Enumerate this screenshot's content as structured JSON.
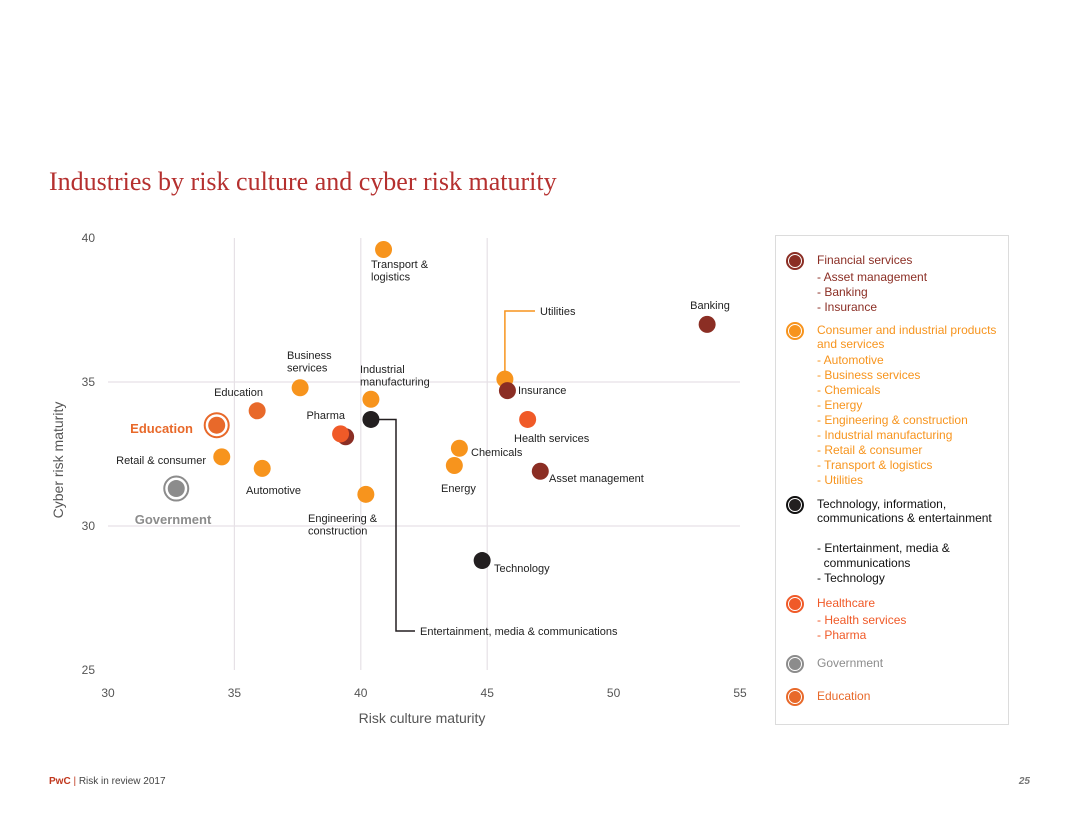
{
  "chart_data": {
    "type": "scatter",
    "title": "Industries by risk culture and cyber risk maturity",
    "xlabel": "Risk culture maturity",
    "ylabel": "Cyber risk maturity",
    "xlim": [
      30,
      55
    ],
    "ylim": [
      25,
      40
    ],
    "x_ticks": [
      "30",
      "35",
      "40",
      "45",
      "50",
      "55"
    ],
    "y_ticks": [
      "40",
      "35",
      "30",
      "25"
    ],
    "grid": true,
    "points": [
      {
        "label": "Transport & logistics",
        "x": 40.9,
        "y": 39.6,
        "group": "consumer"
      },
      {
        "label": "Banking",
        "x": 53.7,
        "y": 37.0,
        "group": "financial"
      },
      {
        "label": "Utilities",
        "x": 45.7,
        "y": 35.1,
        "group": "consumer"
      },
      {
        "label": "Insurance",
        "x": 45.8,
        "y": 34.7,
        "group": "financial"
      },
      {
        "label": "Business services",
        "x": 37.6,
        "y": 34.8,
        "group": "consumer"
      },
      {
        "label": "Industrial manufacturing",
        "x": 40.4,
        "y": 34.4,
        "group": "consumer"
      },
      {
        "label": "Education",
        "x": 35.9,
        "y": 34.0,
        "group": "education"
      },
      {
        "label": "Pharma",
        "x": 39.2,
        "y": 33.2,
        "group": "healthcare"
      },
      {
        "label": "Health services",
        "x": 46.6,
        "y": 33.7,
        "group": "healthcare"
      },
      {
        "label": "Chemicals",
        "x": 43.9,
        "y": 32.7,
        "group": "consumer"
      },
      {
        "label": "Retail & consumer",
        "x": 34.5,
        "y": 32.4,
        "group": "consumer"
      },
      {
        "label": "Automotive",
        "x": 36.1,
        "y": 32.0,
        "group": "consumer"
      },
      {
        "label": "Energy",
        "x": 43.7,
        "y": 32.1,
        "group": "consumer"
      },
      {
        "label": "Asset management",
        "x": 47.1,
        "y": 31.9,
        "group": "financial"
      },
      {
        "label": "Engineering & construction",
        "x": 40.2,
        "y": 31.1,
        "group": "consumer"
      },
      {
        "label": "Entertainment, media & communications",
        "x": 40.4,
        "y": 33.7,
        "group": "technology"
      },
      {
        "label": "Technology",
        "x": 44.8,
        "y": 28.8,
        "group": "technology"
      },
      {
        "label": "Education",
        "x": 34.3,
        "y": 33.5,
        "group": "education-avg",
        "highlight": true
      },
      {
        "label": "Government",
        "x": 32.7,
        "y": 31.3,
        "group": "government",
        "highlight": true
      }
    ],
    "extra_points": [
      {
        "x": 39.4,
        "y": 33.1,
        "group": "financial"
      }
    ],
    "legend": {
      "position": "right",
      "groups": [
        {
          "key": "financial",
          "title": "Financial services",
          "items": [
            "- Asset management",
            "- Banking",
            "- Insurance"
          ]
        },
        {
          "key": "consumer",
          "title": "Consumer and industrial products and services",
          "items": [
            "- Automotive",
            "- Business services",
            "- Chemicals",
            "- Energy",
            "- Engineering & construction",
            "- Industrial manufacturing",
            "- Retail & consumer",
            "- Transport & logistics",
            "- Utilities"
          ]
        },
        {
          "key": "technology",
          "title": "Technology, information, communications & entertainment",
          "items": [
            "- Entertainment, media &",
            "  communications",
            "- Technology"
          ]
        },
        {
          "key": "healthcare",
          "title": "Healthcare",
          "items": [
            "- Health services",
            "- Pharma"
          ]
        },
        {
          "key": "government",
          "title": "Government",
          "items": []
        },
        {
          "key": "education",
          "title": "Education",
          "items": []
        }
      ]
    }
  },
  "colors": {
    "financial": "#8b2e24",
    "consumer": "#f7941d",
    "technology": "#231f20",
    "healthcare": "#f05a28",
    "government": "#8c8c8c",
    "education": "#e8692a",
    "title": "#b5302f",
    "grid": "#e6e1e6",
    "axis_text": "#555555"
  },
  "footer": {
    "brand": "PwC",
    "separator": " | ",
    "publication": "Risk in review 2017",
    "page": "25"
  }
}
